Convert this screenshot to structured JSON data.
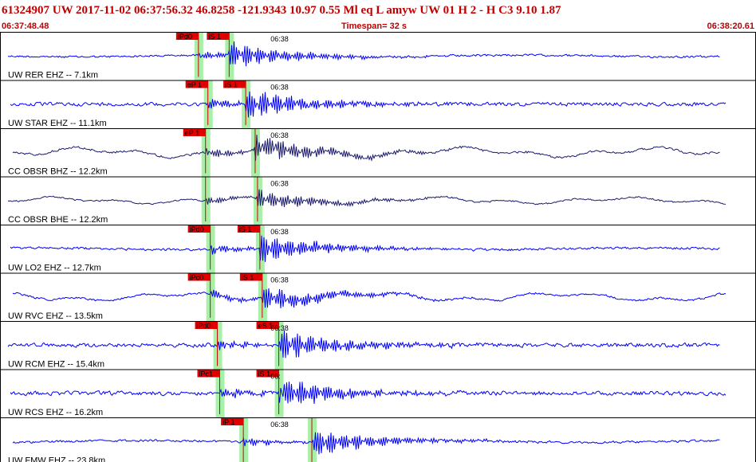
{
  "header": {
    "event_line": "61324907 UW 2017-11-02 06:37:56.32   46.8258 -121.9343  10.97  0.55 Ml  eq  L amyw     UW 01  H   2  -  H C3    9.10  1.87",
    "start_time": "06:37:48.48",
    "timespan": "Timespan=  32 s",
    "end_time": "06:38:20.61"
  },
  "colors": {
    "header_text": "#c00000",
    "trace_blue": "#0000ff",
    "trace_dark": "#1a1a6e",
    "pick_band": "#a8f0a8",
    "pick_flag": "#e00000",
    "pick_line": "#d00000"
  },
  "chart_data": {
    "type": "seismogram",
    "time_window": {
      "start": "06:37:48.48",
      "end": "06:38:20.61",
      "span_s": 32
    },
    "time_tick_label": "06:38",
    "channels": [
      {
        "label": "UW RER EHZ -- 7.1km",
        "color": "#0000ff",
        "p_time_s": 8.4,
        "s_time_s": 9.7,
        "p_pick": "iPd0",
        "s_pick": "iS 1",
        "tick_label": "06:38",
        "style": "quiet",
        "amp": 0.9
      },
      {
        "label": "UW STAR EHZ -- 11.1km",
        "color": "#0000ff",
        "p_time_s": 8.8,
        "s_time_s": 10.4,
        "p_pick": "eP 1",
        "s_pick": "iS 1",
        "tick_label": "06:38",
        "style": "noisy",
        "amp": 1.0
      },
      {
        "label": "CC OBSR BHZ -- 12.2km",
        "color": "#1a1a6e",
        "p_time_s": 8.7,
        "s_time_s": 10.8,
        "p_pick": "eP 1",
        "s_pick": "",
        "tick_label": "06:38",
        "style": "wavy",
        "amp": 1.0
      },
      {
        "label": "CC OBSR BHE -- 12.2km",
        "color": "#1a1a6e",
        "p_time_s": 8.7,
        "s_time_s": 10.9,
        "p_pick": "",
        "s_pick": "",
        "tick_label": "06:38",
        "style": "wavy",
        "amp": 0.7
      },
      {
        "label": "UW LO2 EHZ -- 12.7km",
        "color": "#0000ff",
        "p_time_s": 8.9,
        "s_time_s": 11.0,
        "p_pick": "iPd0",
        "s_pick": "iS 1",
        "tick_label": "06:38",
        "style": "quiet",
        "amp": 1.0
      },
      {
        "label": "UW RVC EHZ -- 13.5km",
        "color": "#0000ff",
        "p_time_s": 8.9,
        "s_time_s": 11.1,
        "p_pick": "iPc0",
        "s_pick": "iS 1",
        "tick_label": "06:38",
        "style": "wavy",
        "amp": 0.9
      },
      {
        "label": "UW RCM EHZ -- 15.4km",
        "color": "#0000ff",
        "p_time_s": 9.2,
        "s_time_s": 11.8,
        "p_pick": "iPd0",
        "s_pick": "eS 1",
        "tick_label": "06:38",
        "style": "noisy",
        "amp": 1.1
      },
      {
        "label": "UW RCS EHZ -- 16.2km",
        "color": "#0000ff",
        "p_time_s": 9.3,
        "s_time_s": 11.8,
        "p_pick": "iPc1",
        "s_pick": "iS 1",
        "tick_label": "06:",
        "style": "noisy",
        "amp": 1.1
      },
      {
        "label": "UW FMW EHZ -- 23.8km",
        "color": "#0000ff",
        "p_time_s": 10.3,
        "s_time_s": 13.2,
        "p_pick": "iP 1",
        "s_pick": "",
        "tick_label": "06:38",
        "style": "quiet",
        "amp": 1.0
      }
    ]
  }
}
